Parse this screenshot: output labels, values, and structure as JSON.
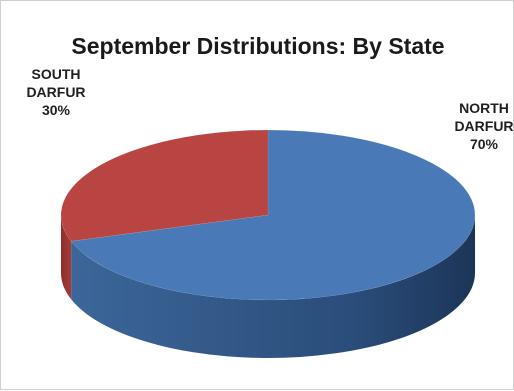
{
  "chart_data": {
    "type": "pie",
    "title": "September Distributions: By State",
    "categories": [
      "NORTH DARFUR",
      "SOUTH DARFUR"
    ],
    "values": [
      70,
      30
    ],
    "units": "%",
    "data_labels": [
      {
        "line1": "NORTH",
        "line2": "DARFUR",
        "pct": "70%"
      },
      {
        "line1": "SOUTH",
        "line2": "DARFUR",
        "pct": "30%"
      }
    ],
    "colors": [
      "#4a79b7",
      "#b84542"
    ],
    "style": "3d"
  }
}
